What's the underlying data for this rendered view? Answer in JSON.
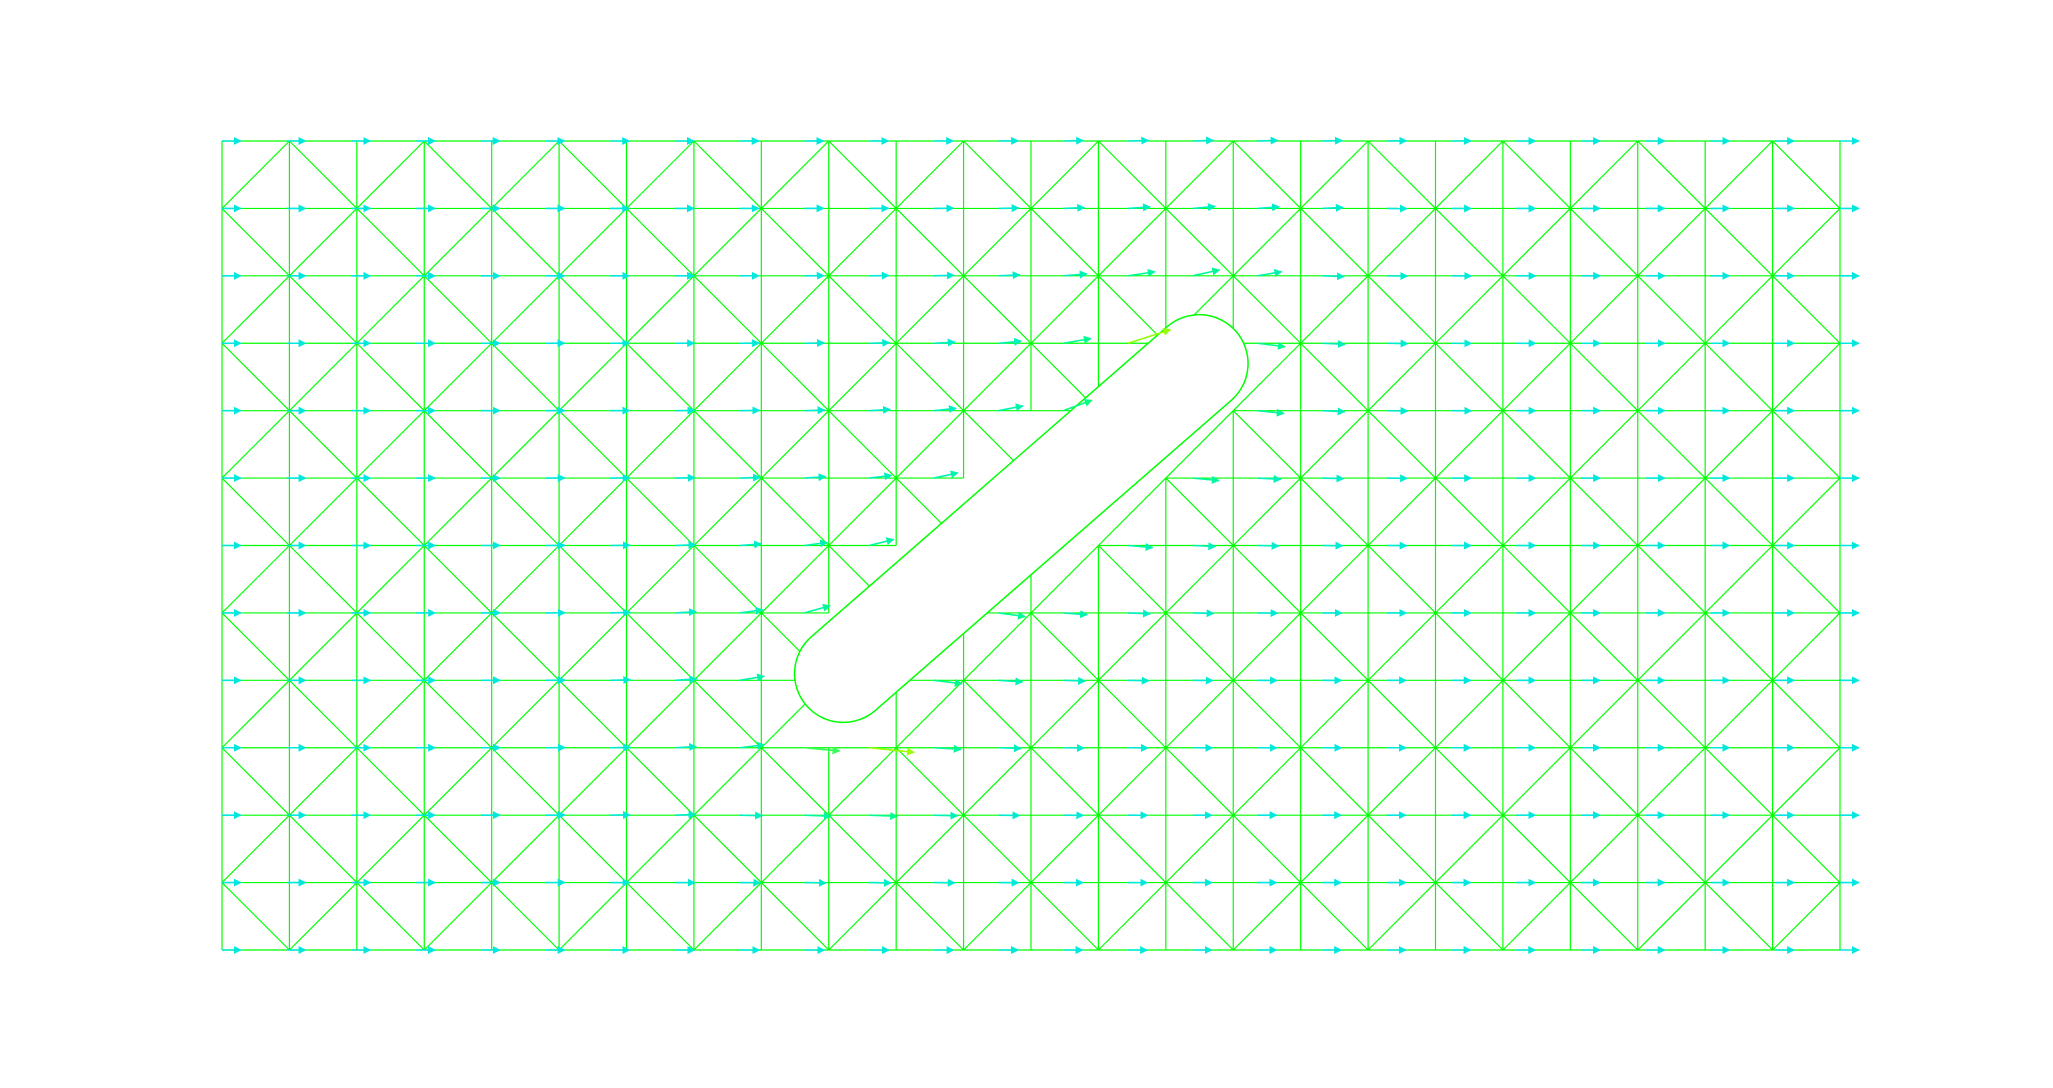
{
  "figure": {
    "description_visible_text": "",
    "mesh_color": "#00ff00",
    "background": "#ffffff",
    "arrow_colormap": [
      "#0090ff",
      "#00e0ff",
      "#00ff80",
      "#a0ff00",
      "#ff0000"
    ]
  },
  "chart_data": {
    "type": "quiver",
    "title": "",
    "xlabel": "",
    "ylabel": "",
    "domain": {
      "x": [
        0,
        25
      ],
      "y": [
        0,
        12
      ]
    },
    "grid": {
      "nx": 24,
      "ny": 12
    },
    "obstacle": {
      "shape": "rounded-slot",
      "from": [
        9.6,
        4.1
      ],
      "to": [
        15.1,
        8.7
      ],
      "half_width": 0.75
    },
    "arrows": {
      "spacing": 1.0,
      "scale": 0.28,
      "hotspots": [
        [
          9.7,
          3.0
        ],
        [
          14.2,
          8.7
        ]
      ]
    },
    "show_axes": false,
    "legend": "none"
  }
}
